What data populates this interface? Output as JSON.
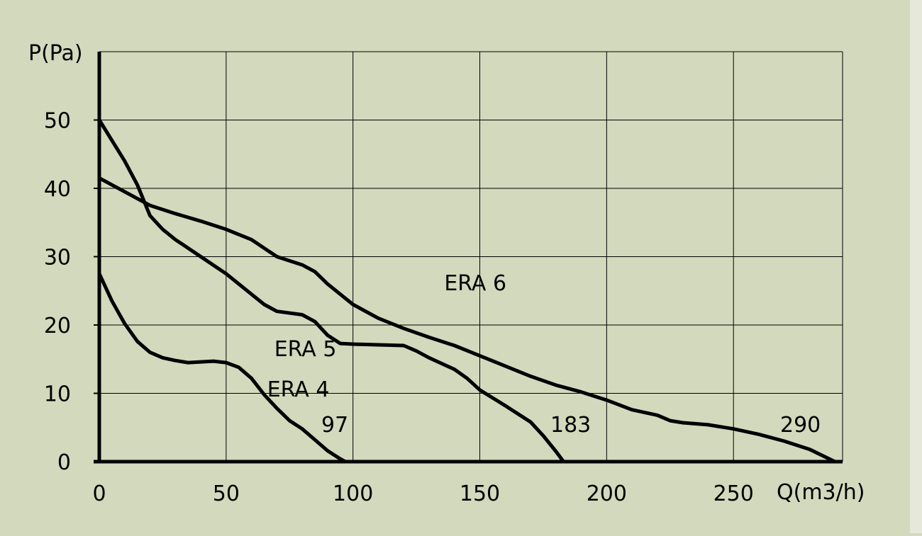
{
  "chart_data": {
    "type": "line",
    "title": "",
    "xlabel": "Q(m3/h)",
    "ylabel": "P(Pa)",
    "xlim": [
      0,
      293
    ],
    "ylim": [
      0,
      60
    ],
    "xticks": [
      0,
      50,
      100,
      150,
      200,
      250
    ],
    "yticks": [
      0,
      10,
      20,
      30,
      40,
      50
    ],
    "grid": true,
    "legend": "none",
    "colors": {
      "background": "#d3d9bd",
      "line": "#000000"
    },
    "series": [
      {
        "name": "ERA 4",
        "end_label": "97",
        "x": [
          0,
          5,
          10,
          15,
          20,
          25,
          30,
          35,
          40,
          45,
          50,
          55,
          60,
          65,
          70,
          75,
          80,
          85,
          90,
          95,
          97
        ],
        "y": [
          27.5,
          23.5,
          20.2,
          17.6,
          16.0,
          15.2,
          14.8,
          14.5,
          14.6,
          14.7,
          14.5,
          13.8,
          12.2,
          9.8,
          7.8,
          6.0,
          4.8,
          3.2,
          1.6,
          0.4,
          0
        ]
      },
      {
        "name": "ERA 5",
        "end_label": "183",
        "x": [
          0,
          5,
          10,
          15,
          20,
          25,
          30,
          40,
          50,
          60,
          65,
          70,
          80,
          85,
          90,
          95,
          100,
          110,
          120,
          125,
          130,
          140,
          145,
          150,
          160,
          170,
          175,
          180,
          183
        ],
        "y": [
          50,
          47.0,
          44.0,
          40.5,
          36.0,
          34.0,
          32.5,
          30.0,
          27.5,
          24.5,
          23.0,
          22.0,
          21.5,
          20.5,
          18.5,
          17.3,
          17.2,
          17.1,
          17.0,
          16.2,
          15.2,
          13.5,
          12.2,
          10.5,
          8.2,
          5.8,
          3.8,
          1.5,
          0
        ]
      },
      {
        "name": "ERA 6",
        "end_label": "290",
        "x": [
          0,
          10,
          20,
          30,
          40,
          50,
          60,
          70,
          80,
          85,
          90,
          95,
          100,
          110,
          120,
          130,
          140,
          150,
          160,
          170,
          180,
          190,
          200,
          210,
          220,
          225,
          230,
          240,
          250,
          260,
          270,
          280,
          290
        ],
        "y": [
          41.5,
          39.5,
          37.5,
          36.3,
          35.2,
          34.0,
          32.5,
          30.0,
          28.8,
          27.8,
          26.0,
          24.5,
          23.0,
          21.0,
          19.5,
          18.2,
          17.0,
          15.5,
          14.0,
          12.5,
          11.2,
          10.2,
          9.0,
          7.6,
          6.8,
          6.0,
          5.7,
          5.4,
          4.8,
          4.0,
          3.0,
          1.8,
          0
        ]
      }
    ]
  }
}
